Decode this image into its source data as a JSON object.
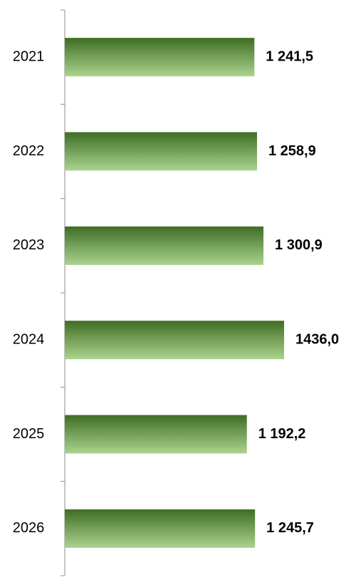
{
  "chart_data": {
    "type": "bar",
    "orientation": "horizontal",
    "categories": [
      "2021",
      "2022",
      "2023",
      "2024",
      "2025",
      "2026"
    ],
    "values": [
      1241.5,
      1258.9,
      1300.9,
      1436.0,
      1192.2,
      1245.7
    ],
    "value_labels": [
      "1 241,5",
      "1 258,9",
      "1 300,9",
      "1436,0",
      "1 192,2",
      "1 245,7"
    ],
    "color": "#3f6d24"
  }
}
